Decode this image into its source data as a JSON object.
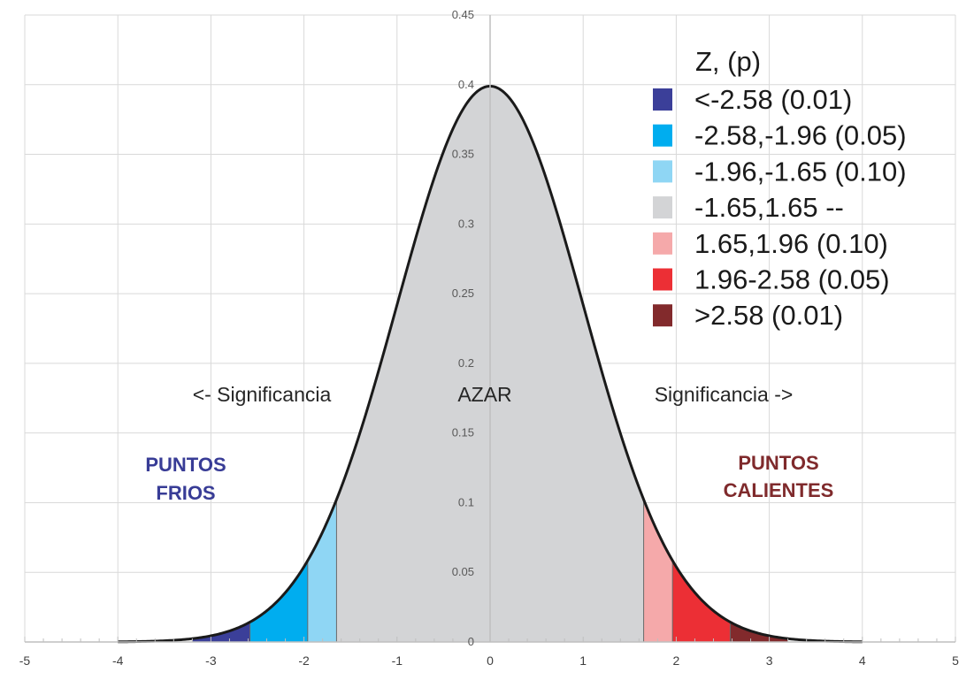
{
  "chart_data": {
    "type": "area",
    "distribution": "standard normal",
    "xlim": [
      -5,
      5
    ],
    "ylim": [
      0,
      0.45
    ],
    "x_ticks": [
      -5,
      -4,
      -3,
      -2,
      -1,
      0,
      1,
      2,
      3,
      4,
      5
    ],
    "y_ticks": [
      0,
      0.05,
      0.1,
      0.15,
      0.2,
      0.25,
      0.3,
      0.35,
      0.4,
      0.45
    ],
    "x_tick_labels": [
      "-5",
      "-4",
      "-3",
      "-2",
      "-1",
      "0",
      "1",
      "2",
      "3",
      "4",
      "5"
    ],
    "y_tick_labels": [
      "0",
      "0.05",
      "0.1",
      "0.15",
      "0.2",
      "0.25",
      "0.3",
      "0.35",
      "0.4",
      "0.45"
    ],
    "curve_range": [
      -4,
      4
    ],
    "grid": true,
    "legend": {
      "title": "Z, (p)",
      "placement": "top-right",
      "entries": [
        {
          "label": "<-2.58 (0.01)",
          "color": "#3b3f99"
        },
        {
          "label": "-2.58,-1.96 (0.05)",
          "color": "#00adef"
        },
        {
          "label": "-1.96,-1.65 (0.10)",
          "color": "#8fd6f4"
        },
        {
          "label": "-1.65,1.65 --",
          "color": "#d3d4d6"
        },
        {
          "label": "1.65,1.96 (0.10)",
          "color": "#f5a9aa"
        },
        {
          "label": "1.96-2.58 (0.05)",
          "color": "#ec2f35"
        },
        {
          "label": ">2.58 (0.01)",
          "color": "#822a2c"
        }
      ]
    },
    "bands": [
      {
        "from": -3.2,
        "to": -2.58,
        "color": "#3b3f99"
      },
      {
        "from": -2.58,
        "to": -1.96,
        "color": "#00adef"
      },
      {
        "from": -1.96,
        "to": -1.65,
        "color": "#8fd6f4"
      },
      {
        "from": -1.65,
        "to": 1.65,
        "color": "#d3d4d6"
      },
      {
        "from": 1.65,
        "to": 1.96,
        "color": "#f5a9aa"
      },
      {
        "from": 1.96,
        "to": 2.58,
        "color": "#ec2f35"
      },
      {
        "from": 2.58,
        "to": 3.2,
        "color": "#822a2c"
      }
    ],
    "annotations": {
      "left_significance": "<- Significancia",
      "center": "AZAR",
      "right_significance": "Significancia ->",
      "cold_line1": "PUNTOS",
      "cold_line2": "FRIOS",
      "hot_line1": "PUNTOS",
      "hot_line2": "CALIENTES"
    },
    "colors": {
      "cold_text": "#383c96",
      "hot_text": "#7f2a2c",
      "curve": "#1a1a1a"
    }
  }
}
